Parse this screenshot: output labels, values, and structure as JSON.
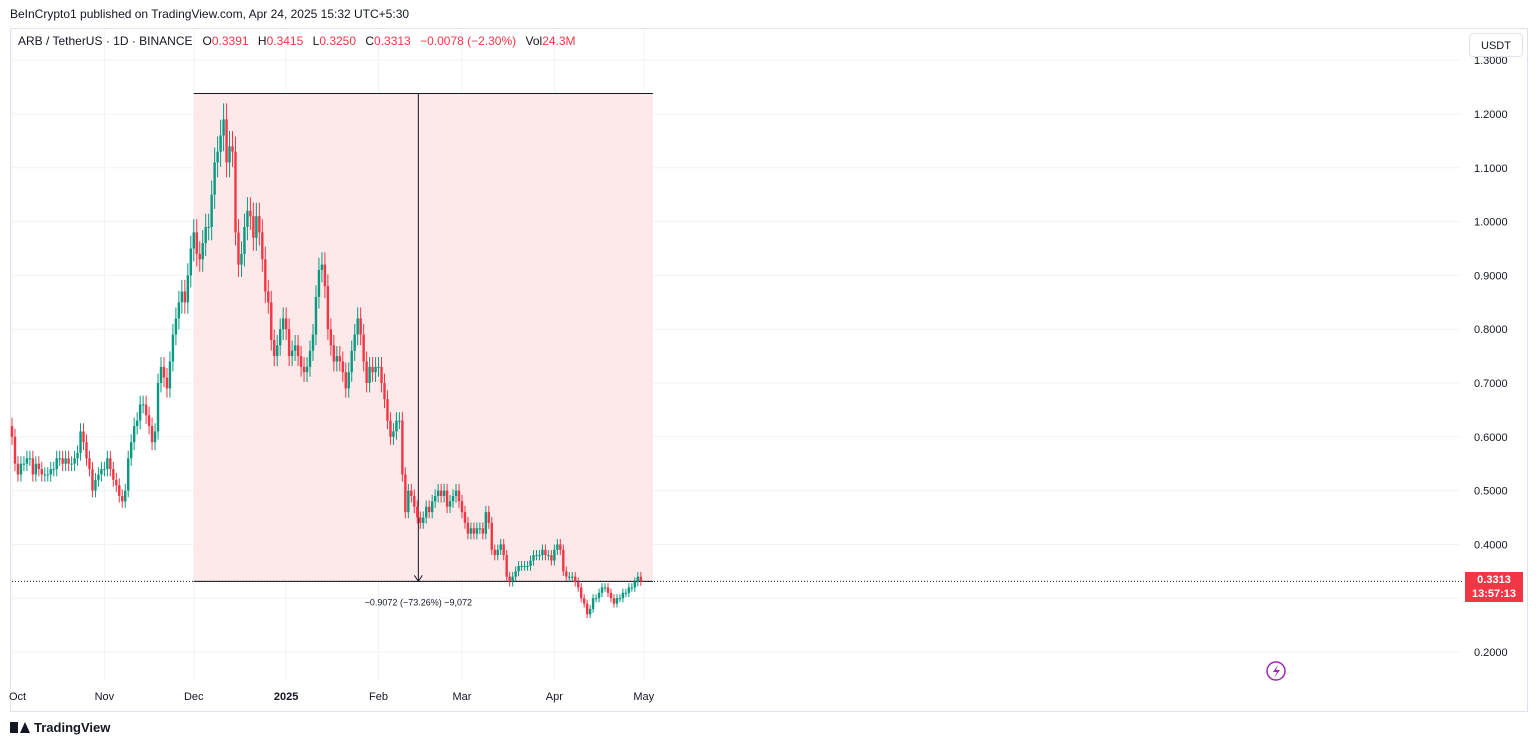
{
  "header": {
    "published": "BeInCrypto1 published on TradingView.com, Apr 24, 2025 15:32 UTC+5:30"
  },
  "legend": {
    "symbol": "ARB / TetherUS · 1D · BINANCE",
    "open_label": "O",
    "open": "0.3391",
    "high_label": "H",
    "high": "0.3415",
    "low_label": "L",
    "low": "0.3250",
    "close_label": "C",
    "close": "0.3313",
    "change": "−0.0078 (−2.30%)",
    "vol_label": "Vol",
    "vol": "24.3M"
  },
  "currency_button": "USDT",
  "price_tag": {
    "price": "0.3313",
    "countdown": "13:57:13"
  },
  "footer": {
    "brand": "TradingView"
  },
  "colors": {
    "up": "#089981",
    "down": "#f23645",
    "range_fill": "#fde9e9",
    "grid": "#f0f3fa"
  },
  "chart_data": {
    "type": "candlestick",
    "symbol": "ARB/USDT",
    "interval": "1D",
    "y_ticks": [
      "0.2000",
      "0.3000",
      "0.4000",
      "0.5000",
      "0.6000",
      "0.7000",
      "0.8000",
      "0.9000",
      "1.0000",
      "1.1000",
      "1.2000",
      "1.3000"
    ],
    "x_ticks": [
      "Oct",
      "Nov",
      "Dec",
      "2025",
      "Feb",
      "Mar",
      "Apr",
      "May"
    ],
    "ylim": [
      0.17,
      1.32
    ],
    "last_price": 0.3313,
    "measure": {
      "from_date": "2024-12-01",
      "to_date": "2025-04-24",
      "high": 1.238,
      "low": 0.3313,
      "label": "−0.9072 (−73.26%) −9,072"
    },
    "candles_start": "2024-10-01",
    "closes": [
      0.6,
      0.55,
      0.53,
      0.55,
      0.55,
      0.56,
      0.56,
      0.53,
      0.55,
      0.54,
      0.53,
      0.53,
      0.53,
      0.54,
      0.54,
      0.56,
      0.56,
      0.55,
      0.56,
      0.55,
      0.55,
      0.56,
      0.57,
      0.61,
      0.59,
      0.56,
      0.54,
      0.5,
      0.52,
      0.53,
      0.54,
      0.54,
      0.56,
      0.54,
      0.52,
      0.51,
      0.49,
      0.48,
      0.5,
      0.56,
      0.59,
      0.62,
      0.63,
      0.66,
      0.66,
      0.64,
      0.62,
      0.59,
      0.61,
      0.7,
      0.73,
      0.71,
      0.69,
      0.74,
      0.79,
      0.82,
      0.85,
      0.87,
      0.85,
      0.9,
      0.95,
      0.98,
      0.94,
      0.93,
      0.96,
      0.99,
      0.99,
      1.05,
      1.11,
      1.13,
      1.16,
      1.19,
      1.11,
      1.14,
      1.13,
      0.98,
      0.92,
      0.94,
      0.99,
      1.02,
      1.01,
      0.97,
      1.01,
      0.98,
      0.93,
      0.87,
      0.85,
      0.78,
      0.75,
      0.77,
      0.8,
      0.82,
      0.8,
      0.75,
      0.76,
      0.77,
      0.75,
      0.73,
      0.72,
      0.73,
      0.76,
      0.79,
      0.86,
      0.91,
      0.92,
      0.88,
      0.8,
      0.77,
      0.74,
      0.75,
      0.74,
      0.72,
      0.69,
      0.72,
      0.76,
      0.79,
      0.82,
      0.79,
      0.74,
      0.7,
      0.73,
      0.72,
      0.73,
      0.73,
      0.7,
      0.67,
      0.63,
      0.6,
      0.61,
      0.63,
      0.63,
      0.53,
      0.46,
      0.5,
      0.49,
      0.47,
      0.45,
      0.44,
      0.45,
      0.47,
      0.46,
      0.48,
      0.49,
      0.5,
      0.49,
      0.5,
      0.47,
      0.48,
      0.49,
      0.5,
      0.48,
      0.46,
      0.44,
      0.42,
      0.43,
      0.42,
      0.43,
      0.43,
      0.42,
      0.46,
      0.44,
      0.39,
      0.38,
      0.39,
      0.4,
      0.38,
      0.34,
      0.33,
      0.34,
      0.35,
      0.36,
      0.36,
      0.36,
      0.36,
      0.37,
      0.38,
      0.38,
      0.38,
      0.39,
      0.38,
      0.38,
      0.37,
      0.39,
      0.4,
      0.39,
      0.35,
      0.34,
      0.34,
      0.34,
      0.33,
      0.32,
      0.3,
      0.29,
      0.27,
      0.28,
      0.3,
      0.3,
      0.31,
      0.32,
      0.32,
      0.31,
      0.3,
      0.29,
      0.3,
      0.3,
      0.31,
      0.31,
      0.32,
      0.32,
      0.33,
      0.34,
      0.3313
    ]
  }
}
